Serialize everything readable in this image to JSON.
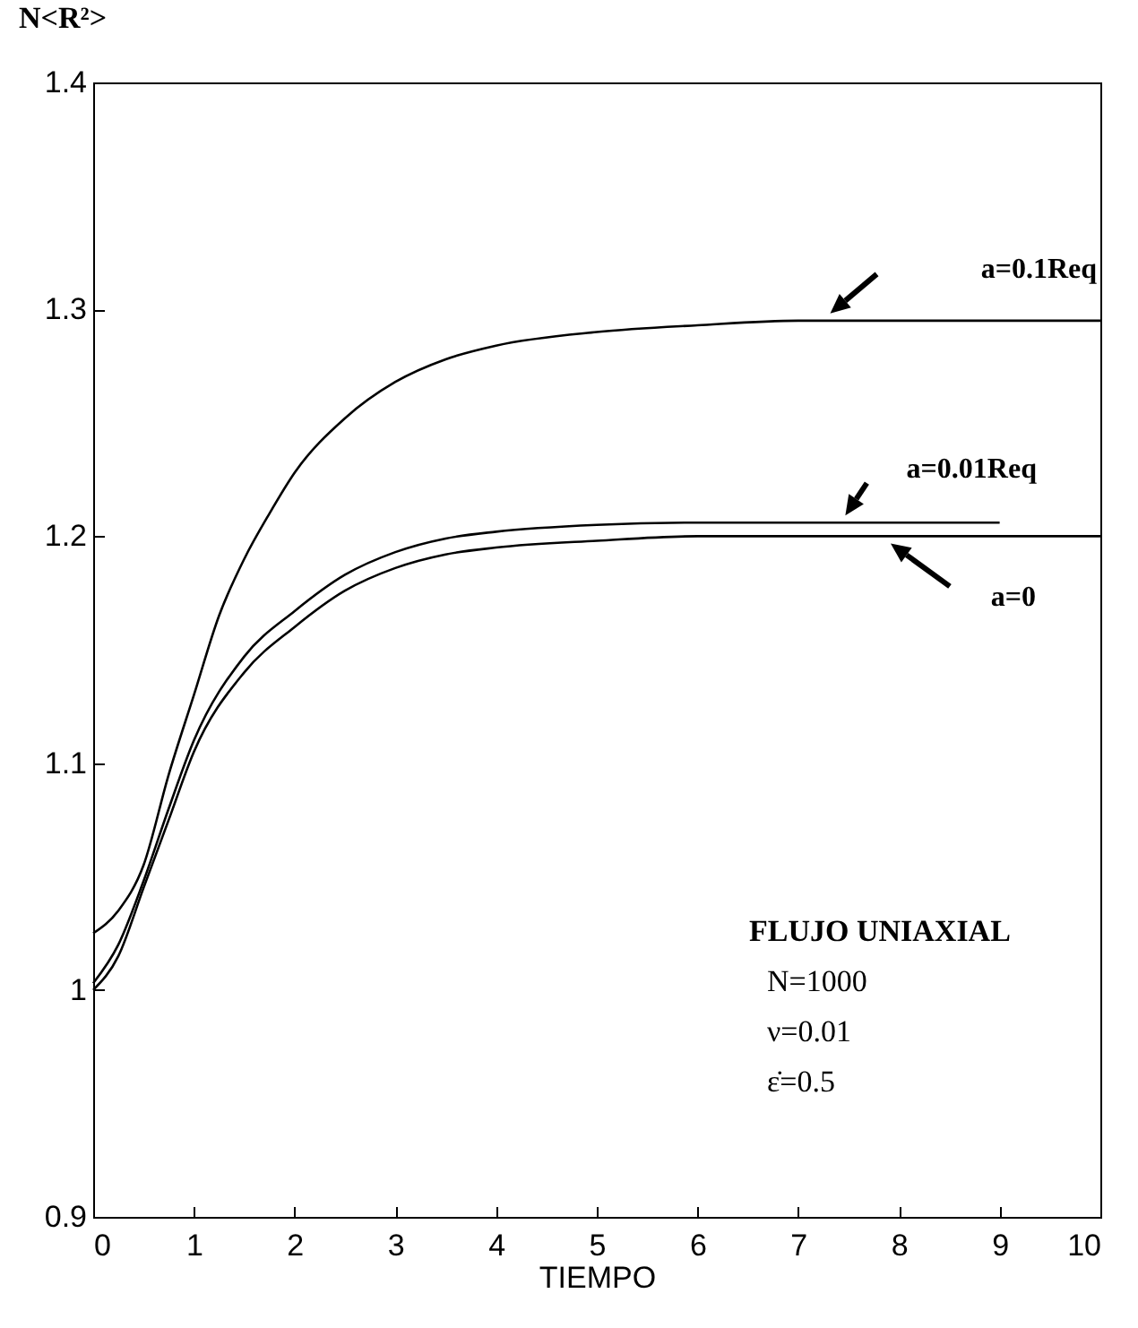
{
  "chart_data": {
    "type": "line",
    "xlabel": "TIEMPO",
    "ylabel": "N<R²>",
    "xlim": [
      0,
      10
    ],
    "xticks": [
      0,
      1,
      2,
      3,
      4,
      5,
      6,
      7,
      8,
      9,
      10
    ],
    "ylim": [
      0.9,
      1.4
    ],
    "yticks": [
      0.9,
      1,
      1.1,
      1.2,
      1.3,
      1.4
    ],
    "series": [
      {
        "name": "a=0.1Req",
        "color": "#000000",
        "x": [
          0,
          0.25,
          0.5,
          0.75,
          1,
          1.25,
          1.5,
          1.75,
          2,
          2.5,
          3,
          3.5,
          4,
          5,
          6,
          7,
          10
        ],
        "values": [
          1.025,
          1.035,
          1.055,
          1.095,
          1.13,
          1.165,
          1.19,
          1.21,
          1.228,
          1.252,
          1.268,
          1.278,
          1.284,
          1.29,
          1.293,
          1.295,
          1.295
        ]
      },
      {
        "name": "a=0.01Req",
        "color": "#000000",
        "x": [
          0,
          0.25,
          0.5,
          0.75,
          1,
          1.5,
          2,
          2.5,
          3,
          3.5,
          4,
          5,
          6,
          9
        ],
        "values": [
          1.003,
          1.02,
          1.048,
          1.08,
          1.11,
          1.147,
          1.167,
          1.183,
          1.193,
          1.199,
          1.202,
          1.205,
          1.206,
          1.206
        ]
      },
      {
        "name": "a=0",
        "color": "#000000",
        "x": [
          0,
          0.25,
          0.5,
          0.75,
          1,
          1.5,
          2,
          2.5,
          3,
          3.5,
          4,
          5,
          6,
          10
        ],
        "values": [
          1,
          1.015,
          1.045,
          1.075,
          1.105,
          1.14,
          1.16,
          1.176,
          1.186,
          1.192,
          1.195,
          1.198,
          1.2,
          1.2
        ]
      }
    ],
    "annotations": [
      "FLUJO UNIAXIAL",
      "N=1000",
      "ν=0.01",
      "ε̇=0.5"
    ],
    "marker": "none",
    "line_style": "solid",
    "grid": false,
    "legend": false
  }
}
